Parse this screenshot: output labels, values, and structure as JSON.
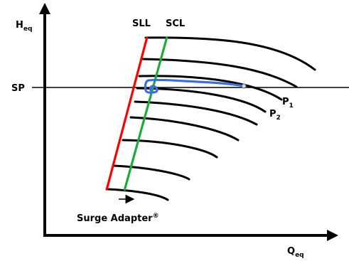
{
  "axes": {
    "y_label": "H",
    "y_label_sub": "eq",
    "x_label": "Q",
    "x_label_sub": "eq"
  },
  "lines": {
    "sp_label": "SP",
    "sll_label": "SLL",
    "scl_label": "SCL"
  },
  "curves": {
    "p1_label": "P",
    "p1_sub": "1",
    "p2_label": "P",
    "p2_sub": "2"
  },
  "annotation": {
    "surge_adapter": "Surge Adapter",
    "registered_mark": "®"
  },
  "colors": {
    "sll": "#ff0000",
    "scl": "#1aab3a",
    "trajectory": "#3a6ee8",
    "curves": "#000000"
  }
}
